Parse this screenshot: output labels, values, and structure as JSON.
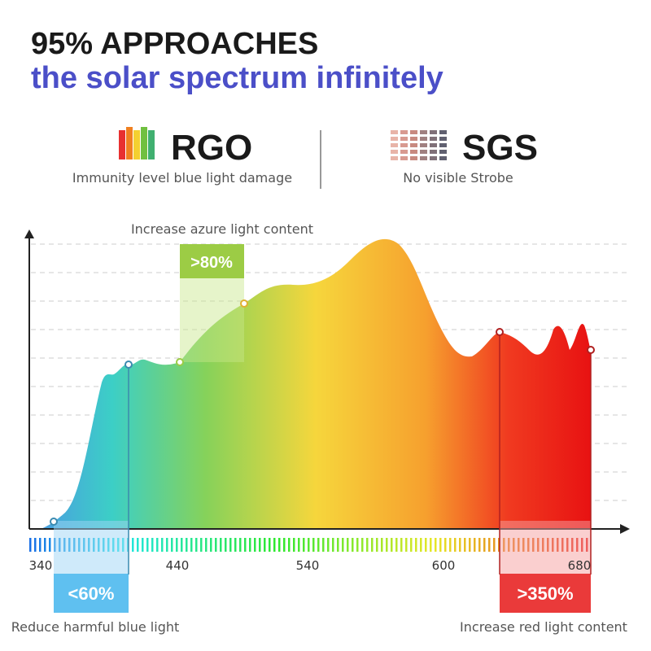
{
  "header": {
    "title": "95% APPROACHES",
    "subtitle": "the solar spectrum infinitely"
  },
  "badges": [
    {
      "label": "RGO",
      "caption": "Immunity level blue light damage"
    },
    {
      "label": "SGS",
      "caption": "No visible Strobe"
    }
  ],
  "axis_labels": [
    "340",
    "440",
    "540",
    "600",
    "680"
  ],
  "callouts": [
    {
      "value": ">80%",
      "caption": "Increase azure light content"
    },
    {
      "value": "<60%",
      "caption": "Reduce harmful blue light"
    },
    {
      "value": ">350%",
      "caption": "Increase red light content"
    }
  ]
}
